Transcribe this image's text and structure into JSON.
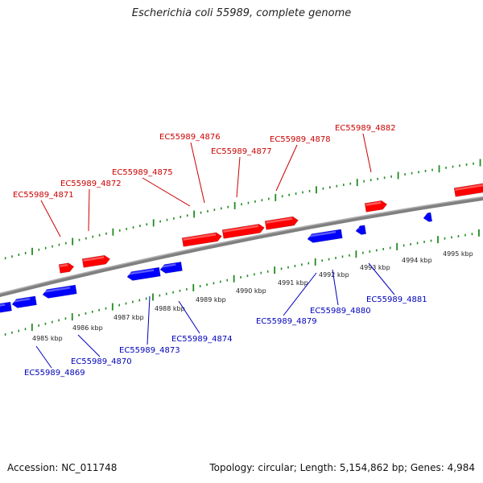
{
  "title": "Escherichia coli 55989, complete genome",
  "footer": {
    "accession": "Accession: NC_011748",
    "topology": "Topology: circular; Length: 5,154,862 bp; Genes: 4,984"
  },
  "colors": {
    "forward_gene": "#ff0000",
    "reverse_gene": "#0000ff",
    "forward_label": "#cc0000",
    "reverse_label": "#0000bb",
    "tick": "#228b22",
    "backbone": "#808080"
  },
  "ruler_labels": [
    "4985 kbp",
    "4986 kbp",
    "4987 kbp",
    "4988 kbp",
    "4989 kbp",
    "4990 kbp",
    "4991 kbp",
    "4992 kbp",
    "4993 kbp",
    "4994 kbp",
    "4995 kbp"
  ],
  "forward_labels": [
    "EC55989_4871",
    "EC55989_4872",
    "EC55989_4875",
    "EC55989_4876",
    "EC55989_4877",
    "EC55989_4878",
    "EC55989_4882"
  ],
  "reverse_labels": [
    "EC55989_4869",
    "EC55989_4870",
    "EC55989_4873",
    "EC55989_4874",
    "EC55989_4879",
    "EC55989_4880",
    "EC55989_4881"
  ]
}
